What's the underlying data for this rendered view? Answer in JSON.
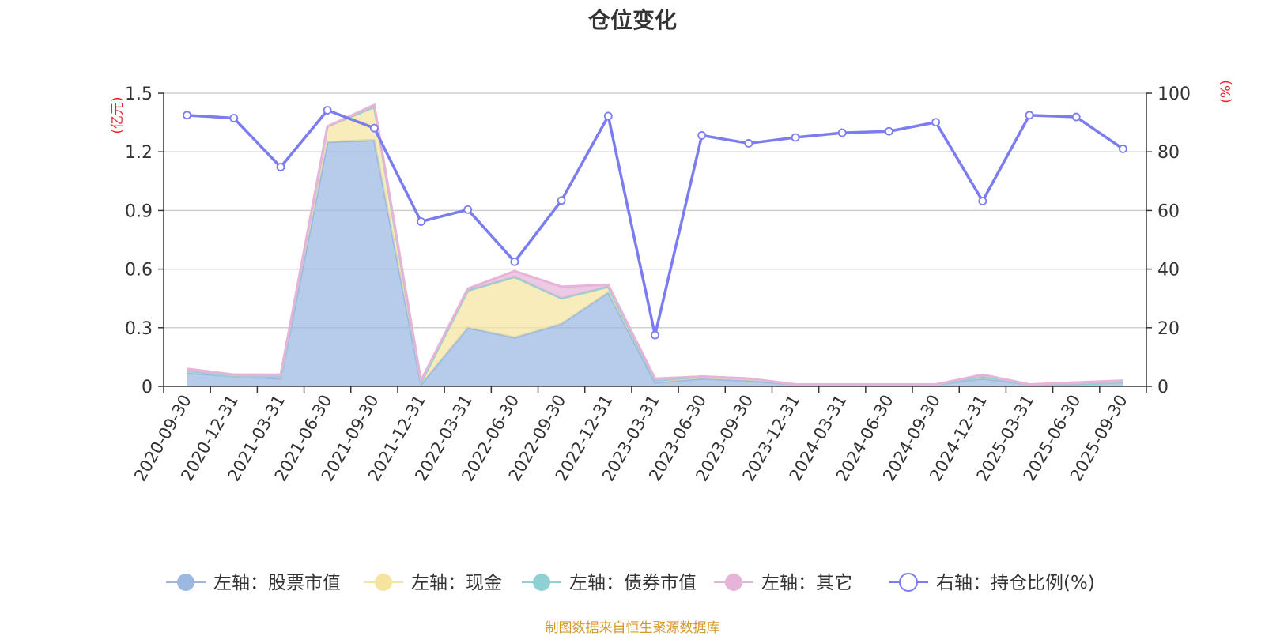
{
  "page": {
    "title": "仓位变化",
    "source_note": "制图数据来自恒生聚源数据库"
  },
  "chart_data": {
    "type": "area",
    "title": "仓位变化",
    "x": [
      "2020-09-30",
      "2020-12-31",
      "2021-03-31",
      "2021-06-30",
      "2021-09-30",
      "2021-12-31",
      "2022-03-31",
      "2022-06-30",
      "2022-09-30",
      "2022-12-31",
      "2023-03-31",
      "2023-06-30",
      "2023-09-30",
      "2023-12-31",
      "2024-03-31",
      "2024-06-30",
      "2024-09-30",
      "2024-12-31",
      "2025-03-31",
      "2025-06-30",
      "2025-09-30"
    ],
    "left_axis": {
      "unit_label": "(亿元)",
      "ylim": [
        0,
        1.5
      ],
      "ticks": [
        "0",
        "0.3",
        "0.6",
        "0.9",
        "1.2",
        "1.5"
      ]
    },
    "right_axis": {
      "unit_label": "(%)",
      "ylim": [
        0,
        100
      ],
      "ticks": [
        "0",
        "20",
        "40",
        "60",
        "80",
        "100"
      ]
    },
    "stacked_series": [
      {
        "name": "左轴：股票市值",
        "color": "#9bb8e3",
        "values": [
          0.07,
          0.05,
          0.04,
          1.25,
          1.26,
          0.01,
          0.3,
          0.25,
          0.32,
          0.48,
          0.02,
          0.04,
          0.03,
          0.01,
          0.01,
          0.01,
          0.01,
          0.04,
          0.01,
          0.01,
          0.02
        ]
      },
      {
        "name": "左轴：现金",
        "color": "#f5e4a0",
        "values": [
          0.01,
          0,
          0.01,
          0.08,
          0.17,
          0.01,
          0.19,
          0.31,
          0.13,
          0.03,
          0.01,
          0.01,
          0.01,
          0,
          0,
          0,
          0,
          0.01,
          0,
          0,
          0
        ]
      },
      {
        "name": "左轴：债券市值",
        "color": "#8fd0d4",
        "values": [
          0,
          0,
          0,
          0,
          0,
          0,
          0,
          0,
          0,
          0,
          0,
          0,
          0,
          0,
          0,
          0,
          0,
          0,
          0,
          0,
          0
        ]
      },
      {
        "name": "左轴：其它",
        "color": "#e6b4d8",
        "values": [
          0.01,
          0.01,
          0.01,
          0,
          0.01,
          0.01,
          0.01,
          0.03,
          0.06,
          0.01,
          0.01,
          0,
          0,
          0,
          0,
          0,
          0,
          0.01,
          0,
          0.01,
          0.01
        ]
      }
    ],
    "line_series": {
      "name": "右轴：持仓比例(%)",
      "color": "#7b7cf0",
      "values": [
        92.5,
        91.5,
        74.8,
        94.2,
        88.1,
        56.2,
        60.3,
        42.5,
        63.4,
        92.2,
        17.5,
        85.6,
        82.9,
        84.9,
        86.5,
        87.0,
        90.1,
        63.2,
        92.5,
        91.9,
        81.0
      ]
    },
    "legend_position": "bottom",
    "grid": true
  }
}
